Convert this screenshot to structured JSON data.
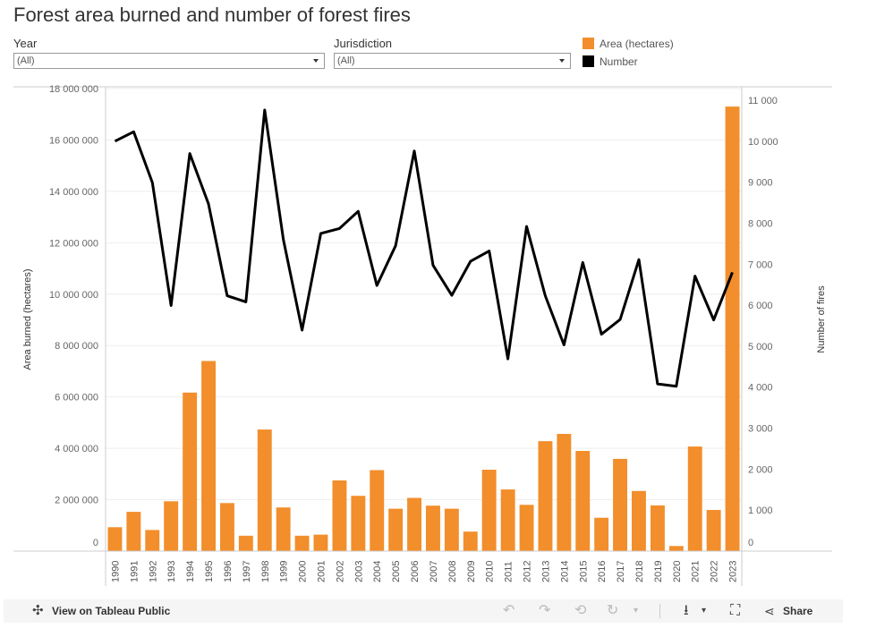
{
  "title": "Forest area burned and number of forest fires",
  "filters": {
    "year": {
      "label": "Year",
      "value": "(All)"
    },
    "jurisdiction": {
      "label": "Jurisdiction",
      "value": "(All)"
    }
  },
  "legend": [
    {
      "label": "Area (hectares)",
      "color": "#f28e2b"
    },
    {
      "label": "Number",
      "color": "#000000"
    }
  ],
  "toolbar": {
    "view_label": "View on Tableau Public",
    "share_label": "Share",
    "icons": [
      "tableau-logo-icon",
      "undo-icon",
      "redo-icon",
      "revert-icon",
      "refresh-icon",
      "download-icon",
      "fullscreen-icon",
      "share-icon"
    ]
  },
  "chart_data": {
    "type": "bar",
    "categories": [
      "1990",
      "1991",
      "1992",
      "1993",
      "1994",
      "1995",
      "1996",
      "1997",
      "1998",
      "1999",
      "2000",
      "2001",
      "2002",
      "2003",
      "2004",
      "2005",
      "2006",
      "2007",
      "2008",
      "2009",
      "2010",
      "2011",
      "2012",
      "2013",
      "2014",
      "2015",
      "2016",
      "2017",
      "2018",
      "2019",
      "2020",
      "2021",
      "2022",
      "2023"
    ],
    "series": [
      {
        "name": "Area (hectares)",
        "type": "bar",
        "axis": "left",
        "color": "#f28e2b",
        "values": [
          930000,
          1530000,
          820000,
          1940000,
          6170000,
          7400000,
          1870000,
          600000,
          4730000,
          1700000,
          600000,
          640000,
          2750000,
          2150000,
          3150000,
          1650000,
          2070000,
          1770000,
          1650000,
          760000,
          3170000,
          2400000,
          1800000,
          4280000,
          4560000,
          3900000,
          1300000,
          3590000,
          2340000,
          1780000,
          200000,
          4070000,
          1600000,
          17300000
        ]
      },
      {
        "name": "Number",
        "type": "line",
        "axis": "right",
        "color": "#000000",
        "values": [
          10000,
          10230,
          8990,
          5990,
          9700,
          8470,
          6230,
          6080,
          10760,
          7600,
          5390,
          7750,
          7870,
          8290,
          6480,
          7450,
          9760,
          6970,
          6240,
          7070,
          7320,
          4690,
          7920,
          6230,
          5030,
          7040,
          5290,
          5650,
          7110,
          4080,
          4020,
          6710,
          5640,
          6800
        ]
      }
    ],
    "ylabel": "Area burned (hectares)",
    "y2label": "Number of fires",
    "ylim": [
      0,
      18000000
    ],
    "y2lim": [
      0,
      11000
    ],
    "yticks": [
      "0",
      "2 000 000",
      "4 000 000",
      "6 000 000",
      "8 000 000",
      "10 000 000",
      "12 000 000",
      "14 000 000",
      "16 000 000",
      "18 000 000"
    ],
    "y2ticks": [
      "0",
      "1 000",
      "2 000",
      "3 000",
      "4 000",
      "5 000",
      "6 000",
      "7 000",
      "8 000",
      "9 000",
      "10 000",
      "11 000"
    ],
    "grid": true
  }
}
